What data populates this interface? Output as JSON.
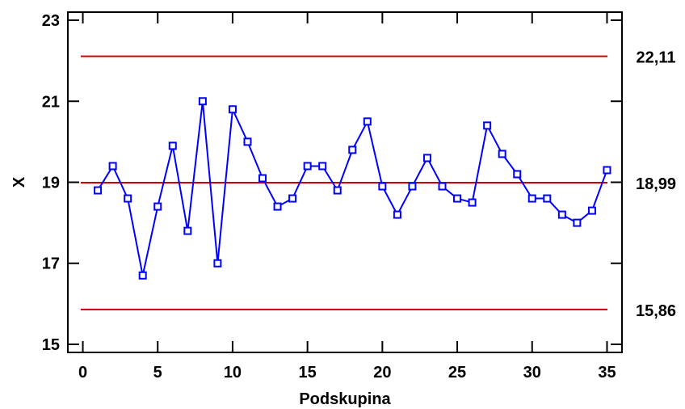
{
  "chart_data": {
    "type": "line",
    "xlabel": "Podskupina",
    "ylabel": "X",
    "xlim": [
      -1,
      36
    ],
    "ylim": [
      14.8,
      23.2
    ],
    "x_ticks": [
      "0",
      "5",
      "10",
      "15",
      "20",
      "25",
      "30",
      "35"
    ],
    "x_tick_values": [
      0,
      5,
      10,
      15,
      20,
      25,
      30,
      35
    ],
    "y_ticks": [
      "15",
      "17",
      "19",
      "21",
      "23"
    ],
    "y_tick_values": [
      15,
      17,
      19,
      21,
      23
    ],
    "grid": false,
    "control_limits": [
      {
        "name": "UCL",
        "value": 22.11,
        "label": "22,11"
      },
      {
        "name": "CL",
        "value": 18.99,
        "label": "18,99"
      },
      {
        "name": "LCL",
        "value": 15.86,
        "label": "15,86"
      }
    ],
    "series": [
      {
        "marker": "square",
        "x": [
          1,
          2,
          3,
          4,
          5,
          6,
          7,
          8,
          9,
          10,
          11,
          12,
          13,
          14,
          15,
          16,
          17,
          18,
          19,
          20,
          21,
          22,
          23,
          24,
          25,
          26,
          27,
          28,
          29,
          30,
          31,
          32,
          33,
          34,
          35
        ],
        "values": [
          18.8,
          19.4,
          18.6,
          16.7,
          18.4,
          19.9,
          17.8,
          21.0,
          17.0,
          20.8,
          20.0,
          19.1,
          18.4,
          18.6,
          19.4,
          19.4,
          18.8,
          19.8,
          20.5,
          18.9,
          18.2,
          18.9,
          19.6,
          18.9,
          18.6,
          18.5,
          20.4,
          19.7,
          19.2,
          18.6,
          18.6,
          18.2,
          18.0,
          18.3,
          19.3
        ]
      }
    ],
    "colors": {
      "series": "#0000ff",
      "limits": "#cc0000",
      "axis": "#000000"
    }
  }
}
